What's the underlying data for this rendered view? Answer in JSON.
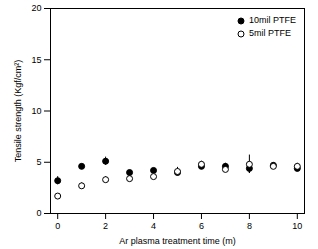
{
  "chart_data": {
    "type": "scatter",
    "x_label": "Ar plasma treatment time (m)",
    "y_label": "Tensile strength (Kgf/cm²)",
    "x": [
      0,
      1,
      2,
      3,
      4,
      5,
      6,
      7,
      8,
      9,
      10
    ],
    "series": [
      {
        "name": "10mil PTFE",
        "color": "#000000",
        "marker": "filled",
        "values": [
          3.2,
          4.6,
          5.1,
          4.0,
          4.2,
          4.0,
          4.6,
          4.6,
          4.4,
          4.7,
          4.4
        ],
        "errors": [
          0.4,
          0.2,
          0.4,
          0.2,
          0.2,
          0.3,
          0.2,
          0.3,
          0.5,
          0.2,
          0.2
        ]
      },
      {
        "name": "5mil PTFE",
        "color": "#000000",
        "marker": "open",
        "values": [
          1.7,
          2.7,
          3.3,
          3.4,
          3.6,
          4.1,
          4.8,
          4.3,
          4.8,
          4.6,
          4.6
        ],
        "errors": [
          0.2,
          0.3,
          0.3,
          0.3,
          0.2,
          0.4,
          0.3,
          0.3,
          0.9,
          0.2,
          0.3
        ]
      }
    ],
    "xlim": [
      -0.3,
      10.3
    ],
    "xticks": [
      0,
      2,
      4,
      6,
      8,
      10
    ],
    "ylim": [
      0,
      20
    ],
    "yticks": [
      0,
      5,
      10,
      15,
      20
    ],
    "grid": false,
    "legend": "top-right"
  }
}
